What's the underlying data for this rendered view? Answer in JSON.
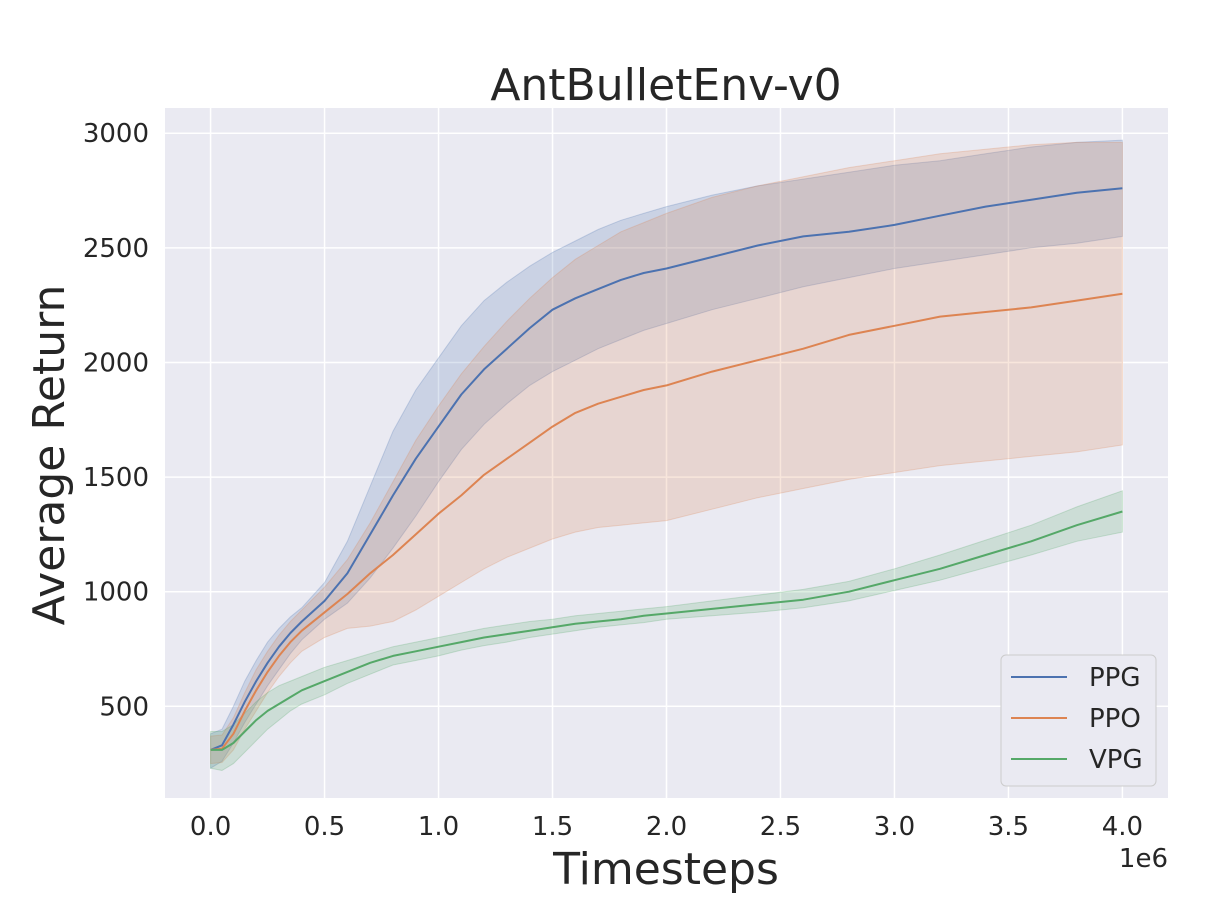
{
  "chart_data": {
    "type": "line",
    "title": "AntBulletEnv-v0",
    "xlabel": "Timesteps",
    "ylabel": "Average Return",
    "x_offset_label": "1e6",
    "x_unit_multiplier": 1000000,
    "xlim": [
      -0.2,
      4.2
    ],
    "ylim": [
      100,
      3110
    ],
    "xticks": [
      0.0,
      0.5,
      1.0,
      1.5,
      2.0,
      2.5,
      3.0,
      3.5,
      4.0
    ],
    "xtick_labels": [
      "0.0",
      "0.5",
      "1.0",
      "1.5",
      "2.0",
      "2.5",
      "3.0",
      "3.5",
      "4.0"
    ],
    "yticks": [
      500,
      1000,
      1500,
      2000,
      2500,
      3000
    ],
    "ytick_labels": [
      "500",
      "1000",
      "1500",
      "2000",
      "2500",
      "3000"
    ],
    "grid": true,
    "background": "#eaeaf2",
    "legend_position": "lower-right",
    "x": [
      0.0,
      0.05,
      0.1,
      0.15,
      0.2,
      0.25,
      0.3,
      0.35,
      0.4,
      0.5,
      0.6,
      0.7,
      0.8,
      0.9,
      1.0,
      1.1,
      1.2,
      1.3,
      1.4,
      1.5,
      1.6,
      1.7,
      1.8,
      1.9,
      2.0,
      2.2,
      2.4,
      2.6,
      2.8,
      3.0,
      3.2,
      3.4,
      3.6,
      3.8,
      4.0
    ],
    "series": [
      {
        "name": "PPG",
        "color": "#4c72b0",
        "values": [
          310,
          330,
          420,
          520,
          610,
          690,
          760,
          820,
          870,
          960,
          1080,
          1250,
          1420,
          1580,
          1720,
          1860,
          1970,
          2060,
          2150,
          2230,
          2280,
          2320,
          2360,
          2390,
          2410,
          2460,
          2510,
          2550,
          2570,
          2600,
          2640,
          2680,
          2710,
          2740,
          2760
        ],
        "lower": [
          230,
          260,
          340,
          430,
          510,
          590,
          660,
          730,
          790,
          880,
          950,
          1060,
          1190,
          1330,
          1480,
          1620,
          1730,
          1820,
          1900,
          1960,
          2010,
          2060,
          2100,
          2140,
          2170,
          2230,
          2280,
          2330,
          2370,
          2410,
          2440,
          2470,
          2500,
          2520,
          2550
        ],
        "upper": [
          380,
          400,
          500,
          610,
          700,
          780,
          840,
          890,
          930,
          1040,
          1220,
          1460,
          1700,
          1880,
          2020,
          2160,
          2270,
          2350,
          2420,
          2480,
          2530,
          2580,
          2620,
          2650,
          2680,
          2730,
          2770,
          2800,
          2830,
          2860,
          2880,
          2910,
          2940,
          2960,
          2970
        ]
      },
      {
        "name": "PPO",
        "color": "#dd8452",
        "values": [
          310,
          315,
          380,
          480,
          570,
          650,
          720,
          780,
          830,
          910,
          990,
          1080,
          1160,
          1250,
          1340,
          1420,
          1510,
          1580,
          1650,
          1720,
          1780,
          1820,
          1850,
          1880,
          1900,
          1960,
          2010,
          2060,
          2120,
          2160,
          2200,
          2220,
          2240,
          2270,
          2300
        ],
        "lower": [
          250,
          255,
          310,
          400,
          480,
          560,
          630,
          690,
          740,
          800,
          840,
          850,
          870,
          920,
          980,
          1040,
          1100,
          1150,
          1190,
          1230,
          1260,
          1280,
          1290,
          1300,
          1310,
          1360,
          1410,
          1450,
          1490,
          1520,
          1550,
          1570,
          1590,
          1610,
          1640
        ],
        "upper": [
          370,
          375,
          450,
          560,
          660,
          740,
          810,
          870,
          920,
          1020,
          1140,
          1300,
          1480,
          1660,
          1810,
          1950,
          2070,
          2180,
          2280,
          2370,
          2450,
          2510,
          2570,
          2610,
          2650,
          2720,
          2770,
          2810,
          2850,
          2880,
          2910,
          2930,
          2950,
          2960,
          2960
        ]
      },
      {
        "name": "VPG",
        "color": "#55a868",
        "values": [
          310,
          310,
          340,
          390,
          440,
          480,
          510,
          540,
          570,
          610,
          650,
          690,
          720,
          740,
          760,
          780,
          800,
          815,
          830,
          845,
          860,
          870,
          880,
          895,
          905,
          925,
          945,
          965,
          1000,
          1050,
          1100,
          1160,
          1220,
          1290,
          1350
        ],
        "lower": [
          230,
          220,
          250,
          300,
          350,
          400,
          440,
          480,
          510,
          550,
          600,
          640,
          680,
          700,
          720,
          745,
          765,
          780,
          800,
          815,
          830,
          845,
          855,
          865,
          880,
          895,
          910,
          930,
          960,
          1005,
          1050,
          1105,
          1160,
          1220,
          1260
        ],
        "upper": [
          390,
          390,
          420,
          470,
          520,
          560,
          590,
          610,
          630,
          670,
          700,
          730,
          760,
          780,
          800,
          820,
          840,
          855,
          870,
          880,
          895,
          905,
          915,
          925,
          935,
          960,
          985,
          1010,
          1045,
          1100,
          1160,
          1225,
          1290,
          1370,
          1440
        ]
      }
    ]
  }
}
